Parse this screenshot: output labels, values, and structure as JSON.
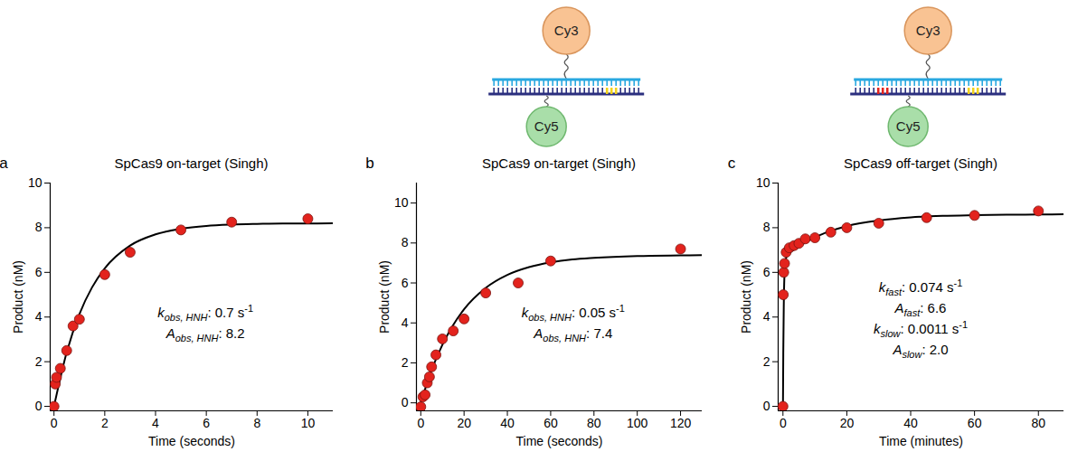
{
  "chart_data": [
    {
      "type": "scatter",
      "panel_label": "a",
      "title": "SpCas9 on-target (Singh)",
      "x_label": "Time (seconds)",
      "y_label": "Product (nM)",
      "xlim": [
        -0.15,
        11
      ],
      "ylim": [
        -0.2,
        10
      ],
      "xticks": [
        0,
        2,
        4,
        6,
        8,
        10
      ],
      "yticks": [
        0,
        2,
        4,
        6,
        8,
        10
      ],
      "series": [
        {
          "type": "scatter",
          "marker": "circle",
          "color": "#e3231d",
          "x": [
            0,
            0.05,
            0.1,
            0.25,
            0.5,
            0.75,
            1,
            2,
            3,
            5,
            7,
            10
          ],
          "values": [
            0,
            1.0,
            1.3,
            1.7,
            2.5,
            3.6,
            3.9,
            5.9,
            6.9,
            7.9,
            8.25,
            8.4
          ]
        },
        {
          "type": "line",
          "line_style": "solid",
          "color": "#000000",
          "x": [
            0,
            0.5,
            1,
            1.5,
            2,
            3,
            4,
            5,
            6,
            7,
            8,
            9,
            10,
            11
          ],
          "values": [
            0,
            2.42,
            4.13,
            5.33,
            6.18,
            7.2,
            7.7,
            7.95,
            8.08,
            8.14,
            8.17,
            8.19,
            8.19,
            8.2
          ]
        }
      ],
      "annotations": [
        [
          {
            "text": "k",
            "style": "italic"
          },
          {
            "text": "obs, HNH",
            "style": "subscript"
          },
          {
            "text": ": "
          },
          {
            "value": 0.7
          },
          {
            "text": " s"
          },
          {
            "text": "-1",
            "style": "superscript"
          }
        ],
        [
          {
            "text": "A",
            "style": "italic"
          },
          {
            "text": "obs, HNH",
            "style": "subscript"
          },
          {
            "text": ": "
          },
          {
            "value": 8.2
          }
        ]
      ]
    },
    {
      "type": "scatter",
      "panel_label": "b",
      "title": "SpCas9 on-target (Singh)",
      "x_label": "Time (seconds)",
      "y_label": "Product (nM)",
      "xlim": [
        -2,
        130
      ],
      "ylim": [
        -0.4,
        11
      ],
      "xticks": [
        0,
        20,
        40,
        60,
        80,
        100,
        120
      ],
      "yticks": [
        0,
        2,
        4,
        6,
        8,
        10
      ],
      "series": [
        {
          "type": "scatter",
          "marker": "circle",
          "color": "#e3231d",
          "x": [
            0,
            1,
            2,
            3,
            4,
            5,
            7,
            10,
            15,
            20,
            30,
            45,
            60,
            120
          ],
          "values": [
            -0.2,
            0.3,
            0.4,
            1.0,
            1.3,
            1.8,
            2.4,
            3.2,
            3.6,
            4.2,
            5.5,
            6.0,
            7.1,
            7.7
          ]
        },
        {
          "type": "line",
          "line_style": "solid",
          "color": "#000000",
          "x": [
            0,
            5,
            10,
            15,
            20,
            30,
            40,
            50,
            60,
            70,
            80,
            100,
            120,
            130
          ],
          "values": [
            0,
            1.64,
            2.91,
            3.9,
            4.68,
            5.75,
            6.4,
            6.79,
            7.03,
            7.18,
            7.26,
            7.35,
            7.38,
            7.39
          ]
        }
      ],
      "annotations": [
        [
          {
            "text": "k",
            "style": "italic"
          },
          {
            "text": "obs, HNH",
            "style": "subscript"
          },
          {
            "text": ": "
          },
          {
            "value": 0.05
          },
          {
            "text": " s"
          },
          {
            "text": "-1",
            "style": "superscript"
          }
        ],
        [
          {
            "text": "A",
            "style": "italic"
          },
          {
            "text": "obs, HNH",
            "style": "subscript"
          },
          {
            "text": ": "
          },
          {
            "value": 7.4
          }
        ]
      ],
      "diagram": {
        "top_label": "Cy3",
        "bottom_label": "Cy5",
        "mismatch": false
      }
    },
    {
      "type": "scatter",
      "panel_label": "c",
      "title": "SpCas9 off-target (Singh)",
      "x_label": "Time (minutes)",
      "y_label": "Product (nM)",
      "xlim": [
        -1.5,
        88
      ],
      "ylim": [
        -0.2,
        10
      ],
      "xticks": [
        0,
        20,
        40,
        60,
        80
      ],
      "yticks": [
        0,
        2,
        4,
        6,
        8,
        10
      ],
      "series": [
        {
          "type": "scatter",
          "marker": "circle",
          "color": "#e3231d",
          "x": [
            0,
            0.1,
            0.25,
            0.5,
            1,
            2,
            3.5,
            5,
            7,
            10,
            15,
            20,
            30,
            45,
            60,
            80
          ],
          "values": [
            0,
            5.0,
            6.0,
            6.4,
            6.9,
            7.1,
            7.2,
            7.3,
            7.5,
            7.55,
            7.8,
            8.0,
            8.2,
            8.45,
            8.55,
            8.75
          ]
        },
        {
          "type": "line",
          "line_style": "solid",
          "color": "#000000",
          "x": [
            0,
            0.1,
            0.25,
            0.5,
            1,
            2,
            4,
            6,
            8,
            10,
            15,
            20,
            30,
            40,
            50,
            60,
            70,
            80,
            88
          ],
          "values": [
            0,
            2.38,
            4.45,
            5.95,
            6.65,
            6.85,
            7.06,
            7.25,
            7.42,
            7.57,
            7.86,
            8.07,
            8.32,
            8.46,
            8.53,
            8.56,
            8.58,
            8.59,
            8.6
          ]
        }
      ],
      "annotations": [
        [
          {
            "text": "k",
            "style": "italic"
          },
          {
            "text": "fast",
            "style": "subscript"
          },
          {
            "text": ": "
          },
          {
            "value": 0.074
          },
          {
            "text": " s"
          },
          {
            "text": "-1",
            "style": "superscript"
          }
        ],
        [
          {
            "text": "A",
            "style": "italic"
          },
          {
            "text": "fast",
            "style": "subscript"
          },
          {
            "text": ": "
          },
          {
            "value": 6.6
          }
        ],
        [
          {
            "text": "k",
            "style": "italic"
          },
          {
            "text": "slow",
            "style": "subscript"
          },
          {
            "text": ": "
          },
          {
            "value": 0.0011
          },
          {
            "text": " s"
          },
          {
            "text": "-1",
            "style": "superscript"
          }
        ],
        [
          {
            "text": "A",
            "style": "italic"
          },
          {
            "text": "slow",
            "style": "subscript"
          },
          {
            "text": ": "
          },
          {
            "value": {
              "value": 2.0,
              "label": "2.0"
            }
          }
        ]
      ],
      "diagram": {
        "top_label": "Cy3",
        "bottom_label": "Cy5",
        "mismatch": true
      }
    }
  ]
}
